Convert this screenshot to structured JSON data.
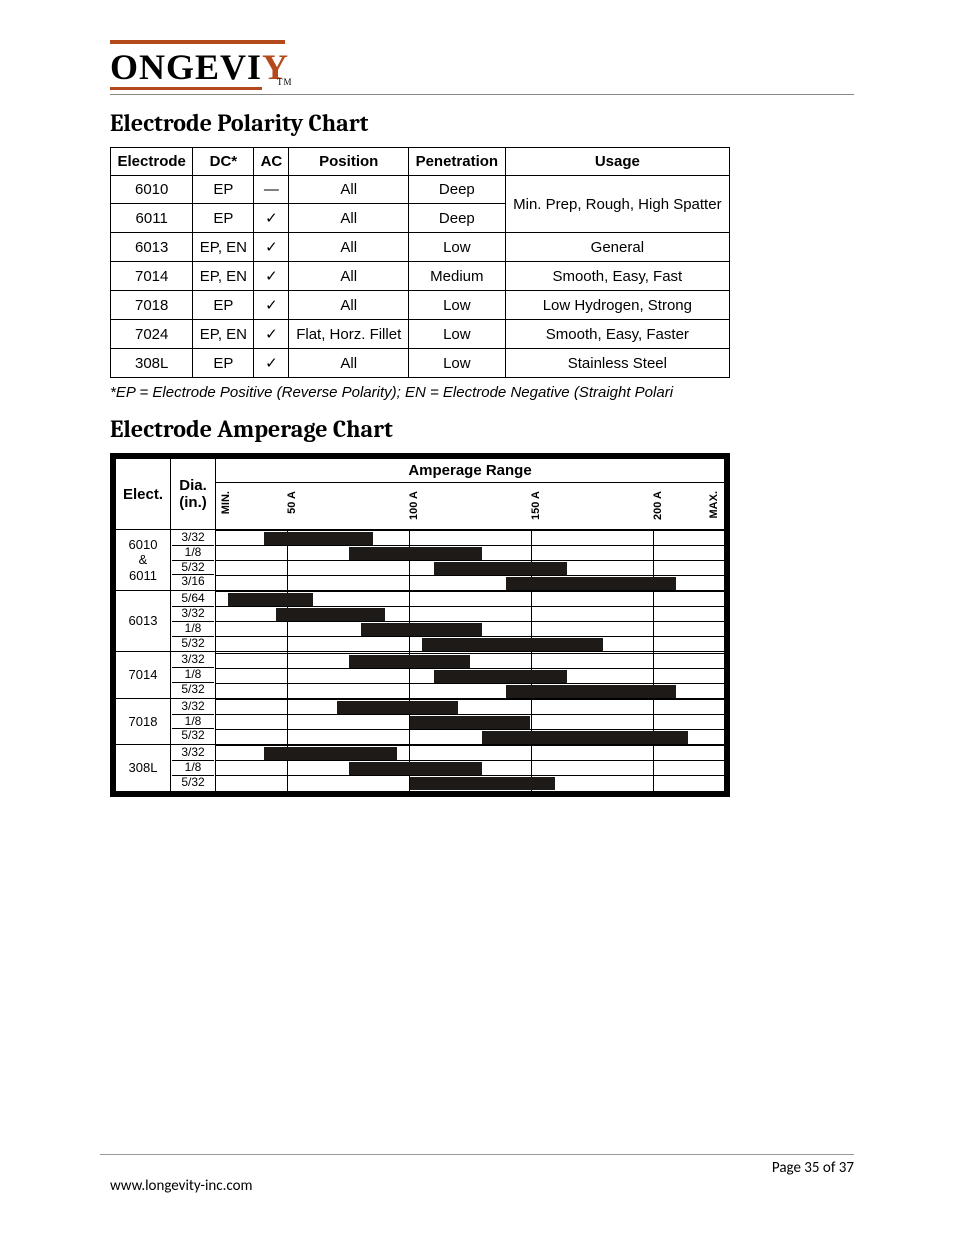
{
  "logo": {
    "main": "ONGEVI",
    "accent": "Y",
    "tm": "TM"
  },
  "section_titles": {
    "polarity": "Electrode Polarity Chart",
    "amperage": "Electrode Amperage Chart"
  },
  "polarity_table": {
    "headers": [
      "Electrode",
      "DC*",
      "AC",
      "Position",
      "Penetration",
      "Usage"
    ],
    "rows": [
      {
        "electrode": "6010",
        "dc": "EP",
        "ac": "—",
        "position": "All",
        "penetration": "Deep",
        "usage_merge": true
      },
      {
        "electrode": "6011",
        "dc": "EP",
        "ac": "✓",
        "position": "All",
        "penetration": "Deep",
        "usage_merge": true
      },
      {
        "electrode": "6013",
        "dc": "EP, EN",
        "ac": "✓",
        "position": "All",
        "penetration": "Low",
        "usage": "General"
      },
      {
        "electrode": "7014",
        "dc": "EP, EN",
        "ac": "✓",
        "position": "All",
        "penetration": "Medium",
        "usage": "Smooth, Easy, Fast"
      },
      {
        "electrode": "7018",
        "dc": "EP",
        "ac": "✓",
        "position": "All",
        "penetration": "Low",
        "usage": "Low Hydrogen, Strong"
      },
      {
        "electrode": "7024",
        "dc": "EP, EN",
        "ac": "✓",
        "position": "Flat, Horz. Fillet",
        "penetration": "Low",
        "usage": "Smooth, Easy, Faster"
      },
      {
        "electrode": "308L",
        "dc": "EP",
        "ac": "✓",
        "position": "All",
        "penetration": "Low",
        "usage": "Stainless Steel"
      }
    ],
    "merged_usage": "Min. Prep, Rough, High Spatter"
  },
  "footnote": "*EP = Electrode Positive (Reverse Polarity); EN = Electrode Negative (Straight Polari",
  "amperage_chart": {
    "header": "Amperage Range",
    "col_elect": "Elect.",
    "col_dia": "Dia. (in.)",
    "axis": {
      "min": 20,
      "max": 230
    },
    "ticks": [
      {
        "label": "MIN.",
        "pos_pct": 1
      },
      {
        "label": "50 A",
        "pos_pct": 14
      },
      {
        "label": "100 A",
        "pos_pct": 38
      },
      {
        "label": "150 A",
        "pos_pct": 62
      },
      {
        "label": "200 A",
        "pos_pct": 86
      },
      {
        "label": "MAX.",
        "pos_pct": 97
      }
    ],
    "gridlines_pct": [
      14,
      38,
      62,
      86
    ],
    "groups": [
      {
        "elect": "6010 & 6011",
        "rows": [
          {
            "dia": "3/32",
            "lo": 40,
            "hi": 85
          },
          {
            "dia": "1/8",
            "lo": 75,
            "hi": 130
          },
          {
            "dia": "5/32",
            "lo": 110,
            "hi": 165
          },
          {
            "dia": "3/16",
            "lo": 140,
            "hi": 210
          }
        ]
      },
      {
        "elect": "6013",
        "rows": [
          {
            "dia": "5/64",
            "lo": 25,
            "hi": 60
          },
          {
            "dia": "3/32",
            "lo": 45,
            "hi": 90
          },
          {
            "dia": "1/8",
            "lo": 80,
            "hi": 130
          },
          {
            "dia": "5/32",
            "lo": 105,
            "hi": 180
          }
        ]
      },
      {
        "elect": "7014",
        "rows": [
          {
            "dia": "3/32",
            "lo": 75,
            "hi": 125
          },
          {
            "dia": "1/8",
            "lo": 110,
            "hi": 165
          },
          {
            "dia": "5/32",
            "lo": 140,
            "hi": 210
          }
        ]
      },
      {
        "elect": "7018",
        "rows": [
          {
            "dia": "3/32",
            "lo": 70,
            "hi": 120
          },
          {
            "dia": "1/8",
            "lo": 100,
            "hi": 150
          },
          {
            "dia": "5/32",
            "lo": 130,
            "hi": 215
          }
        ]
      },
      {
        "elect": "308L",
        "rows": [
          {
            "dia": "3/32",
            "lo": 40,
            "hi": 95
          },
          {
            "dia": "1/8",
            "lo": 75,
            "hi": 130
          },
          {
            "dia": "5/32",
            "lo": 100,
            "hi": 160
          }
        ]
      }
    ]
  },
  "footer": {
    "url": "www.longevity-inc.com",
    "page": "Page 35 of 37"
  },
  "colors": {
    "accent": "#b44a1c",
    "bar_fill": "#1d1a17",
    "text": "#000000",
    "rule": "#888888",
    "background": "#ffffff"
  }
}
